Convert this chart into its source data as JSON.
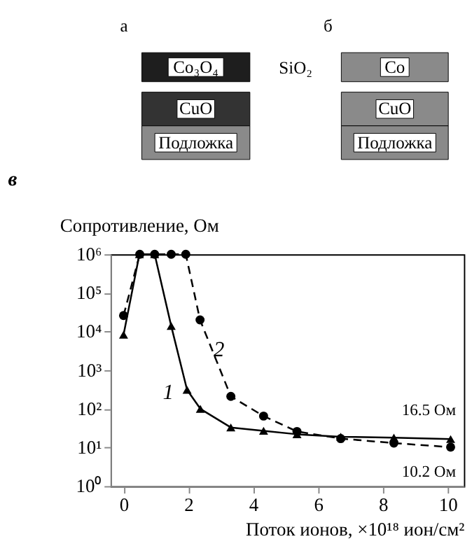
{
  "chart_data": [
    {
      "type": "other",
      "annotations": [
        "а",
        "б",
        "Co₃O₄",
        "CuO",
        "Подложка",
        "SiO₂",
        "Co",
        "CuO",
        "Подложка"
      ]
    },
    {
      "type": "line",
      "title": "в",
      "ylabel": "Сопротивление, Ом",
      "xlabel": "Поток ионов, ×10¹⁸ ион/см²",
      "log": true,
      "xlim": [
        -0.4,
        10.5
      ],
      "xticks": [
        0,
        2,
        4,
        6,
        8,
        10
      ],
      "ylim": [
        1,
        1000000
      ],
      "yticks": [
        {
          "value": 1,
          "label": "10⁰"
        },
        {
          "value": 10,
          "label": "10¹"
        },
        {
          "value": 100,
          "label": "10²"
        },
        {
          "value": 1000,
          "label": "10³"
        },
        {
          "value": 10000,
          "label": "10⁴"
        },
        {
          "value": 100000,
          "label": "10⁵"
        },
        {
          "value": 1000000,
          "label": "10⁶"
        }
      ],
      "grid": false,
      "series": [
        {
          "name": "1",
          "color": "#000000",
          "marker": "triangle",
          "line_style": "solid",
          "x": [
            0,
            0.49,
            0.96,
            1.47,
            1.96,
            2.37,
            3.31,
            4.32,
            5.35,
            6.7,
            8.34,
            10.09
          ],
          "values": [
            8300,
            1000000,
            1000000,
            14000,
            310,
            100,
            33,
            27,
            22,
            19,
            18,
            16.5
          ]
        },
        {
          "name": "2",
          "color": "#000000",
          "marker": "circle",
          "line_style": "dashed",
          "x": [
            0,
            0.5,
            0.96,
            1.47,
            1.92,
            2.36,
            3.31,
            4.32,
            5.35,
            6.7,
            8.34,
            10.09
          ],
          "values": [
            26000,
            1000000,
            1000000,
            1000000,
            1000000,
            20000,
            210,
            65,
            26,
            17,
            13,
            10.2
          ]
        }
      ],
      "annotations": [
        {
          "text": "16.5 Ом",
          "x": 10.09,
          "y": 16.5
        },
        {
          "text": "10.2 Ом",
          "x": 10.09,
          "y": 10.2
        }
      ]
    }
  ]
}
